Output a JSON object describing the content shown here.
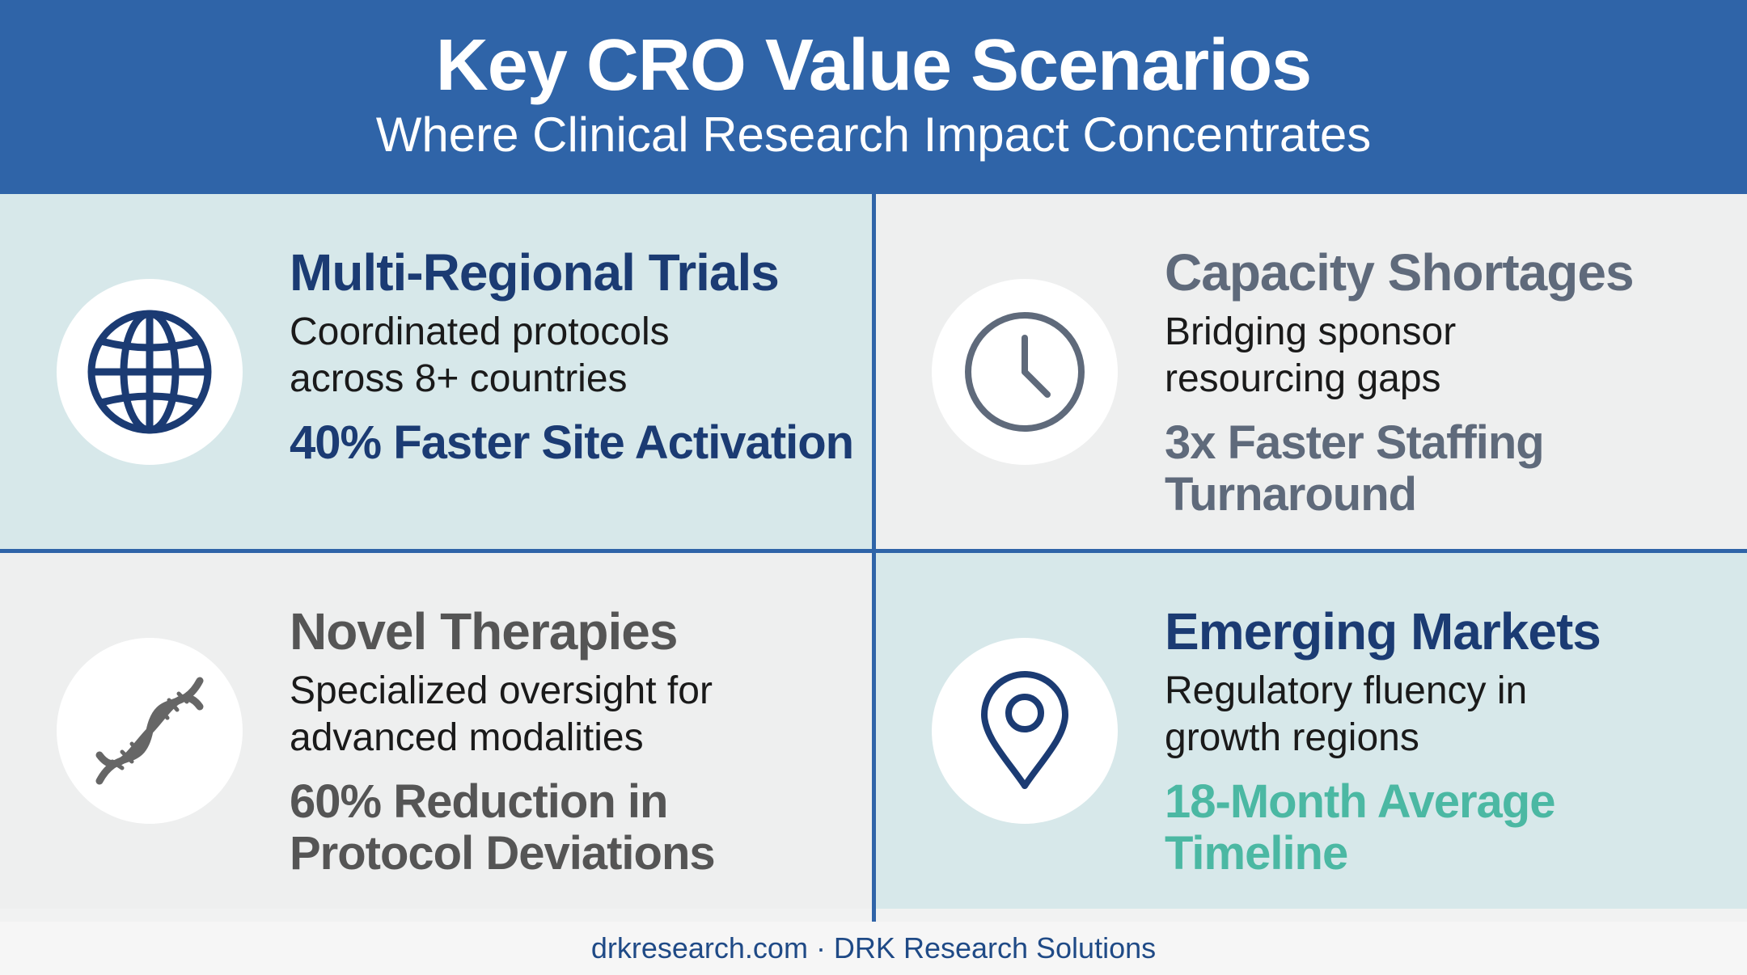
{
  "header": {
    "title": "Key CRO Value Scenarios",
    "subtitle": "Where Clinical Research Impact Concentrates"
  },
  "cards": [
    {
      "title": "Multi-Regional Trials",
      "description": "Coordinated protocols across 8+ countries",
      "stat": "40% Faster Site Activation",
      "icon": "globe-icon",
      "title_color": "#1b3b73",
      "stat_color": "#1b3b73",
      "background": "#d7e8ea"
    },
    {
      "title": "Capacity Shortages",
      "description": "Bridging sponsor resourcing gaps",
      "stat": "3x Faster Staffing Turnaround",
      "icon": "clock-icon",
      "title_color": "#5f6a7b",
      "stat_color": "#5f6a7b",
      "background": "#eeefef"
    },
    {
      "title": "Novel Therapies",
      "description": "Specialized oversight for advanced modalities",
      "stat": "60% Reduction in Protocol Deviations",
      "icon": "dna-icon",
      "title_color": "#555555",
      "stat_color": "#555555",
      "background": "#eeefef"
    },
    {
      "title": "Emerging Markets",
      "description": "Regulatory fluency in growth regions",
      "stat": "18-Month Average Timeline",
      "icon": "map-pin-icon",
      "title_color": "#1b3b73",
      "stat_color": "#4bb8a3",
      "background": "#d7e8ea"
    }
  ],
  "footer": {
    "text": "drkresearch.com · DRK Research Solutions"
  },
  "colors": {
    "header_bg": "#2f64a8",
    "divider": "#2f64a8",
    "footer_text": "#1f4a86"
  }
}
